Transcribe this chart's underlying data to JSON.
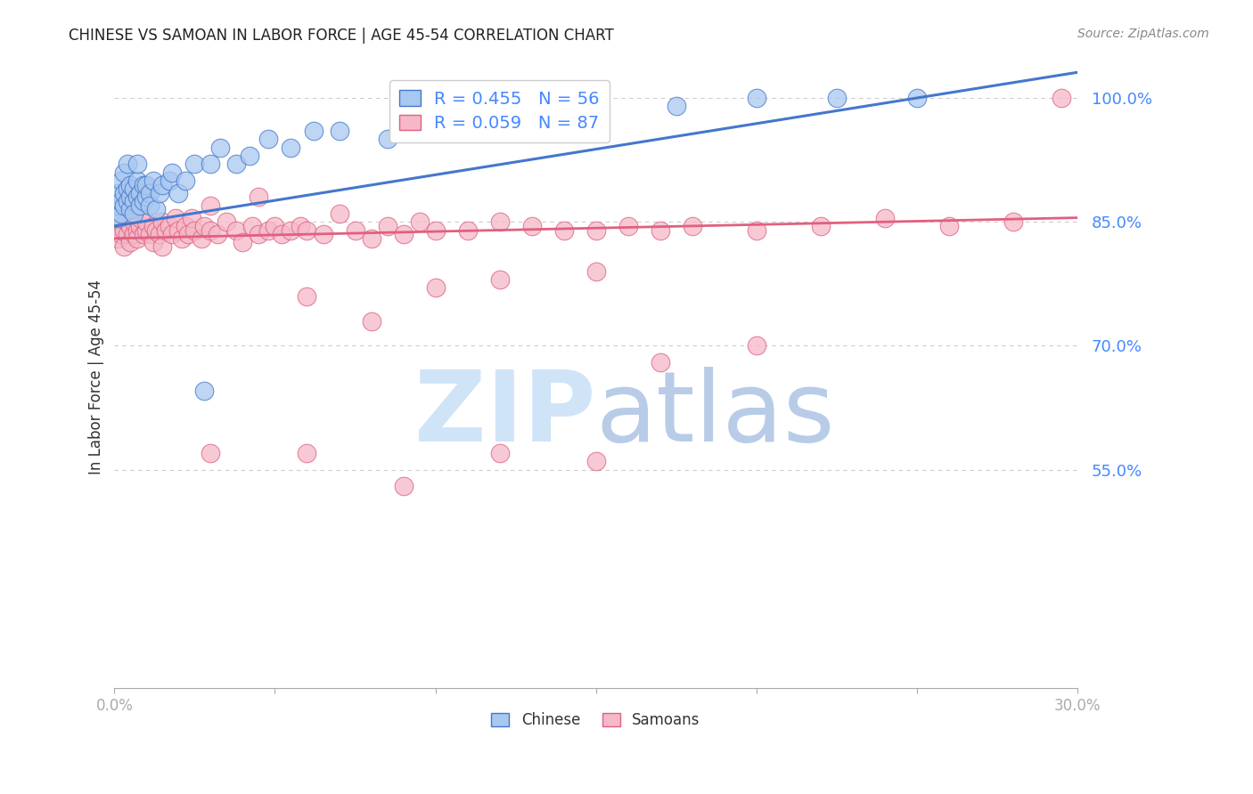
{
  "title": "CHINESE VS SAMOAN IN LABOR FORCE | AGE 45-54 CORRELATION CHART",
  "source": "Source: ZipAtlas.com",
  "ylabel": "In Labor Force | Age 45-54",
  "ytick_labels": [
    "100.0%",
    "85.0%",
    "70.0%",
    "55.0%"
  ],
  "ytick_values": [
    1.0,
    0.85,
    0.7,
    0.55
  ],
  "xlim": [
    0.0,
    0.3
  ],
  "ylim": [
    0.285,
    1.04
  ],
  "chinese_color": "#a8c8f0",
  "samoan_color": "#f5b8c8",
  "chinese_line_color": "#4477cc",
  "samoan_line_color": "#e06080",
  "background_color": "#ffffff",
  "grid_color": "#cccccc",
  "chinese_line_x0": 0.0,
  "chinese_line_y0": 0.845,
  "chinese_line_x1": 0.25,
  "chinese_line_y1": 1.0,
  "samoan_line_x0": 0.0,
  "samoan_line_y0": 0.83,
  "samoan_line_x1": 0.3,
  "samoan_line_y1": 0.855,
  "chinese_x": [
    0.001,
    0.001,
    0.001,
    0.002,
    0.002,
    0.002,
    0.003,
    0.003,
    0.003,
    0.004,
    0.004,
    0.004,
    0.005,
    0.005,
    0.005,
    0.006,
    0.006,
    0.006,
    0.007,
    0.007,
    0.007,
    0.008,
    0.008,
    0.009,
    0.009,
    0.01,
    0.01,
    0.011,
    0.011,
    0.012,
    0.013,
    0.014,
    0.015,
    0.017,
    0.018,
    0.02,
    0.022,
    0.025,
    0.028,
    0.03,
    0.033,
    0.038,
    0.042,
    0.048,
    0.055,
    0.062,
    0.07,
    0.085,
    0.095,
    0.11,
    0.13,
    0.15,
    0.175,
    0.2,
    0.225,
    0.25
  ],
  "chinese_y": [
    0.855,
    0.87,
    0.885,
    0.86,
    0.875,
    0.9,
    0.87,
    0.885,
    0.91,
    0.875,
    0.89,
    0.92,
    0.865,
    0.88,
    0.895,
    0.875,
    0.89,
    0.86,
    0.88,
    0.9,
    0.92,
    0.885,
    0.87,
    0.895,
    0.875,
    0.88,
    0.895,
    0.885,
    0.87,
    0.9,
    0.865,
    0.885,
    0.895,
    0.9,
    0.91,
    0.885,
    0.9,
    0.92,
    0.645,
    0.92,
    0.94,
    0.92,
    0.93,
    0.95,
    0.94,
    0.96,
    0.96,
    0.95,
    0.965,
    0.97,
    0.975,
    0.98,
    0.99,
    1.0,
    1.0,
    1.0
  ],
  "samoan_x": [
    0.001,
    0.001,
    0.002,
    0.002,
    0.003,
    0.003,
    0.004,
    0.004,
    0.005,
    0.005,
    0.006,
    0.006,
    0.007,
    0.007,
    0.008,
    0.008,
    0.009,
    0.01,
    0.01,
    0.011,
    0.012,
    0.012,
    0.013,
    0.014,
    0.015,
    0.015,
    0.016,
    0.017,
    0.018,
    0.019,
    0.02,
    0.021,
    0.022,
    0.023,
    0.024,
    0.025,
    0.027,
    0.028,
    0.03,
    0.032,
    0.035,
    0.038,
    0.04,
    0.043,
    0.045,
    0.048,
    0.05,
    0.052,
    0.055,
    0.058,
    0.06,
    0.065,
    0.07,
    0.075,
    0.08,
    0.085,
    0.09,
    0.095,
    0.1,
    0.11,
    0.12,
    0.13,
    0.14,
    0.15,
    0.16,
    0.17,
    0.18,
    0.2,
    0.22,
    0.24,
    0.26,
    0.28,
    0.295,
    0.03,
    0.045,
    0.06,
    0.08,
    0.1,
    0.12,
    0.15,
    0.17,
    0.2,
    0.03,
    0.06,
    0.09,
    0.12,
    0.15
  ],
  "samoan_y": [
    0.83,
    0.845,
    0.835,
    0.855,
    0.82,
    0.84,
    0.835,
    0.85,
    0.825,
    0.845,
    0.835,
    0.85,
    0.84,
    0.83,
    0.845,
    0.855,
    0.835,
    0.84,
    0.85,
    0.835,
    0.845,
    0.825,
    0.84,
    0.835,
    0.85,
    0.82,
    0.84,
    0.845,
    0.835,
    0.855,
    0.84,
    0.83,
    0.845,
    0.835,
    0.855,
    0.84,
    0.83,
    0.845,
    0.84,
    0.835,
    0.85,
    0.84,
    0.825,
    0.845,
    0.835,
    0.84,
    0.845,
    0.835,
    0.84,
    0.845,
    0.84,
    0.835,
    0.86,
    0.84,
    0.83,
    0.845,
    0.835,
    0.85,
    0.84,
    0.84,
    0.85,
    0.845,
    0.84,
    0.84,
    0.845,
    0.84,
    0.845,
    0.84,
    0.845,
    0.855,
    0.845,
    0.85,
    1.0,
    0.87,
    0.88,
    0.76,
    0.73,
    0.77,
    0.78,
    0.79,
    0.68,
    0.7,
    0.57,
    0.57,
    0.53,
    0.57,
    0.56
  ]
}
